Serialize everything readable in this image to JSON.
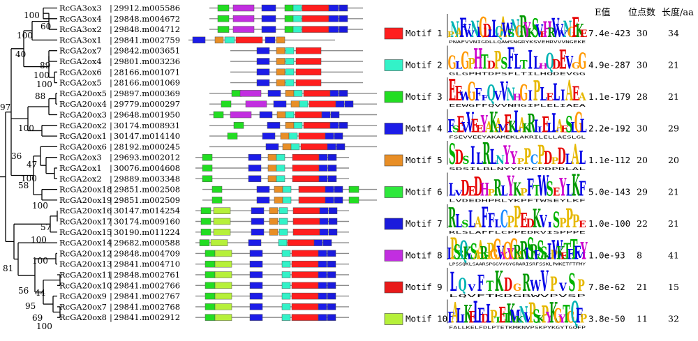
{
  "figure": {
    "table_headers": {
      "evalue": "E值",
      "sites": "位点数",
      "length": "长度/aa"
    },
    "motifs": [
      {
        "label": "Motif 1",
        "color": "#ff1e1e",
        "evalue": "7.4e-423",
        "sites": "30",
        "length": "34",
        "consensus": "PNAFVVNIGDLLQAWSNGRYKSVEHRVVVNGEKE"
      },
      {
        "label": "Motif 2",
        "color": "#33f2c8",
        "evalue": "4.9e-287",
        "sites": "30",
        "length": "21",
        "consensus": "GLGPHTDPSFLTILHQDEVGG"
      },
      {
        "label": "Motif 3",
        "color": "#22dd22",
        "evalue": "1.1e-179",
        "sites": "28",
        "length": "21",
        "consensus": "EEWGFFQVVNHGIPLELIAEA"
      },
      {
        "label": "Motif 4",
        "color": "#1c1ce8",
        "evalue": "2.2e-192",
        "sites": "30",
        "length": "29",
        "consensus": "FSEVVEEYAKAMEKLAKRILELLAESLGL"
      },
      {
        "label": "Motif 5",
        "color": "#e88e26",
        "evalue": "1.1e-112",
        "sites": "20",
        "length": "20",
        "consensus": "SDSILRLNYYPPCPDPDLAL"
      },
      {
        "label": "Motif 6",
        "color": "#2ee83c",
        "evalue": "5.0e-143",
        "sites": "29",
        "length": "21",
        "consensus": "LVDEDHPRLYKPFTWSEYLKF"
      },
      {
        "label": "Motif 7",
        "color": "#1a1adc",
        "evalue": "1.0e-100",
        "sites": "22",
        "length": "21",
        "consensus": "RLSLAFFLCPPEDKVISPPPE"
      },
      {
        "label": "Motif 8",
        "color": "#c22ee0",
        "evalue": "1.0e-93",
        "sites": "8",
        "length": "41",
        "consensus": "LPSSQKLSAARSPGGVYGYGRARISRFSSKLPWKETFTFMY"
      },
      {
        "label": "Motif 9",
        "color": "#e81a1a",
        "evalue": "7.8e-62",
        "sites": "21",
        "length": "15",
        "consensus": "LQVFTKDGRWVPVSP"
      },
      {
        "label": "Motif 10",
        "color": "#b6f03a",
        "evalue": "3.8e-50",
        "sites": "11",
        "length": "32",
        "consensus": "FALLKELFDLPTETKMKNVPSKPYKGYTGQFP"
      }
    ],
    "genes": [
      {
        "name": "RcGA3ox3",
        "id": "29912.m005586"
      },
      {
        "name": "RcGA3ox4",
        "id": "29848.m004672"
      },
      {
        "name": "RcGA3ox2",
        "id": "29848.m004712"
      },
      {
        "name": "RcGA3ox1",
        "id": "29841.m002759"
      },
      {
        "name": "RcGA2ox7",
        "id": "29842.m003651"
      },
      {
        "name": "RcGA2ox4",
        "id": "29801.m003236"
      },
      {
        "name": "RcGA2ox6",
        "id": "28166.m001071"
      },
      {
        "name": "RcGA2ox5",
        "id": "28166.m001069"
      },
      {
        "name": "RcGA20ox5",
        "id": "29897.m000369"
      },
      {
        "name": "RcGA20ox4",
        "id": "29779.m000297"
      },
      {
        "name": "RcGA20ox3",
        "id": "29648.m001950"
      },
      {
        "name": "RcGA20ox2",
        "id": "30174.m008931"
      },
      {
        "name": "RcGA20ox1",
        "id": "30147.m014140"
      },
      {
        "name": "RcGA20ox6",
        "id": "28192.m000245"
      },
      {
        "name": "RcGA2ox3",
        "id": "29693.m002012"
      },
      {
        "name": "RcGA2ox1",
        "id": "30076.m004608"
      },
      {
        "name": "RcGA2ox2",
        "id": "29889.m003348"
      },
      {
        "name": "RcGA20ox18",
        "id": "29851.m002508"
      },
      {
        "name": "RcGA20ox19",
        "id": "29851.m002509"
      },
      {
        "name": "RcGA20ox16",
        "id": "30147.m014254"
      },
      {
        "name": "RcGA20ox17",
        "id": "30174.m009160"
      },
      {
        "name": "RcGA20ox15",
        "id": "30190.m011224"
      },
      {
        "name": "RcGA20ox14",
        "id": "29682.m000588"
      },
      {
        "name": "RcGA20ox12",
        "id": "29848.m004709"
      },
      {
        "name": "RcGA20ox13",
        "id": "29841.m004710"
      },
      {
        "name": "RcGA20ox11",
        "id": "29848.m002761"
      },
      {
        "name": "RcGA20ox10",
        "id": "29841.m002766"
      },
      {
        "name": "RcGA20ox9",
        "id": "29841.m002767"
      },
      {
        "name": "RcGA20ox7",
        "id": "29841.m002768"
      },
      {
        "name": "RcGA20ox8",
        "id": "29841.m002912"
      }
    ],
    "bootstrap": [
      {
        "value": "100",
        "node": "n_a"
      },
      {
        "value": "60",
        "node": "n_b"
      },
      {
        "value": "100",
        "node": "n_c"
      },
      {
        "value": "40",
        "node": "n_d"
      },
      {
        "value": "89",
        "node": "n_e"
      },
      {
        "value": "100",
        "node": "n_f"
      },
      {
        "value": "100",
        "node": "n_g"
      },
      {
        "value": "88",
        "node": "n_h"
      },
      {
        "value": "97",
        "node": "n_i"
      },
      {
        "value": "100",
        "node": "n_j"
      },
      {
        "value": "36",
        "node": "n_k"
      },
      {
        "value": "47",
        "node": "n_l"
      },
      {
        "value": "100",
        "node": "n_m"
      },
      {
        "value": "58",
        "node": "n_n"
      },
      {
        "value": "100",
        "node": "n_o"
      },
      {
        "value": "100",
        "node": "n_p"
      },
      {
        "value": "57",
        "node": "n_q"
      },
      {
        "value": "100",
        "node": "n_r"
      },
      {
        "value": "81",
        "node": "n_s"
      },
      {
        "value": "100",
        "node": "n_t"
      },
      {
        "value": "56",
        "node": "n_u"
      },
      {
        "value": "44",
        "node": "n_v"
      },
      {
        "value": "95",
        "node": "n_w"
      },
      {
        "value": "69",
        "node": "n_x"
      },
      {
        "value": "100",
        "node": "n_y"
      }
    ]
  }
}
